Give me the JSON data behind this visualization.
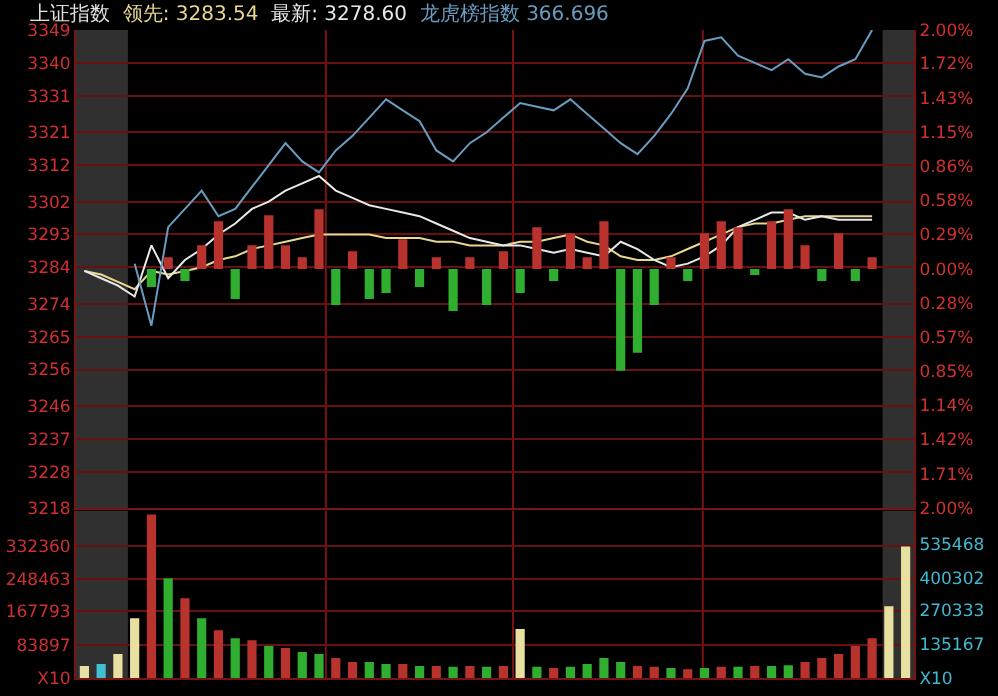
{
  "chart_data": [
    {
      "type": "line",
      "title": "上证指数",
      "categories": [
        null,
        null,
        null,
        null,
        null,
        null,
        null,
        null,
        null,
        null,
        null,
        null,
        null,
        null,
        null,
        null,
        null,
        null,
        null,
        null,
        null,
        null,
        null,
        null,
        null,
        null,
        null,
        null,
        null,
        null,
        null,
        null,
        null,
        null,
        null,
        null,
        null,
        null,
        null,
        null,
        null,
        null,
        null,
        null,
        null,
        null,
        null,
        null,
        null,
        null
      ],
      "series": [
        {
          "name": "领先: 3283.54",
          "color": "#e8d890",
          "values": [
            3283,
            3282,
            3280,
            3278,
            3283,
            3282,
            3283,
            3284,
            3286,
            3287,
            3289,
            3290,
            3291,
            3292,
            3293,
            3293,
            3293,
            3293,
            3292,
            3292,
            3292,
            3291,
            3291,
            3290,
            3290,
            3290,
            3291,
            3291,
            3292,
            3293,
            3291,
            3290,
            3287,
            3286,
            3286,
            3287,
            3289,
            3291,
            3293,
            3295,
            3296,
            3296,
            3297,
            3298,
            3298,
            3298,
            3298,
            3298,
            null,
            null
          ]
        },
        {
          "name": "最新: 3278.60",
          "color": "#e8e8e8",
          "values": [
            3283,
            3281,
            3279,
            3276,
            3290,
            3281,
            3286,
            3289,
            3293,
            3296,
            3300,
            3302,
            3305,
            3307,
            3309,
            3305,
            3303,
            3301,
            3300,
            3299,
            3298,
            3296,
            3294,
            3292,
            3291,
            3290,
            3290,
            3289,
            3288,
            3289,
            3288,
            3287,
            3291,
            3289,
            3286,
            3284,
            3285,
            3287,
            3290,
            3295,
            3297,
            3299,
            3299,
            3297,
            3298,
            3297,
            3297,
            3297,
            null,
            null
          ]
        },
        {
          "name": "龙虎榜指数 366.696",
          "color": "#6a9cc0",
          "values": [
            null,
            null,
            null,
            3285,
            3268,
            3295,
            3300,
            3305,
            3298,
            3300,
            3306,
            3312,
            3318,
            3313,
            3310,
            3316,
            3320,
            3325,
            3330,
            3327,
            3324,
            3316,
            3313,
            3318,
            3321,
            3325,
            3329,
            3328,
            3327,
            3330,
            3326,
            3322,
            3318,
            3315,
            3320,
            3326,
            3333,
            3346,
            3347,
            3342,
            3340,
            3338,
            3341,
            3337,
            3336,
            3339,
            3341,
            3349,
            null,
            null
          ]
        },
        {
          "type": "bar",
          "axis": "y2",
          "values": [
            null,
            null,
            null,
            null,
            -0.15,
            0.1,
            -0.1,
            0.2,
            0.4,
            -0.25,
            0.2,
            0.45,
            0.2,
            0.1,
            0.5,
            -0.3,
            0.15,
            -0.25,
            -0.2,
            0.25,
            -0.15,
            0.1,
            -0.35,
            0.1,
            -0.3,
            0.15,
            -0.2,
            0.35,
            -0.1,
            0.3,
            0.1,
            0.4,
            -0.85,
            -0.7,
            -0.3,
            0.1,
            -0.1,
            0.3,
            0.4,
            0.35,
            -0.05,
            0.4,
            0.5,
            0.2,
            -0.1,
            0.3,
            -0.1,
            0.1,
            null,
            null
          ],
          "colors": [
            "#b8322e",
            "#b8322e",
            "#b8322e",
            "#b8322e",
            "#2fae2f",
            "#b8322e",
            "#2fae2f",
            "#b8322e",
            "#b8322e",
            "#2fae2f",
            "#b8322e",
            "#b8322e",
            "#b8322e",
            "#b8322e",
            "#b8322e",
            "#2fae2f",
            "#b8322e",
            "#2fae2f",
            "#2fae2f",
            "#b8322e",
            "#2fae2f",
            "#b8322e",
            "#2fae2f",
            "#b8322e",
            "#2fae2f",
            "#b8322e",
            "#2fae2f",
            "#b8322e",
            "#2fae2f",
            "#b8322e",
            "#b8322e",
            "#b8322e",
            "#2fae2f",
            "#2fae2f",
            "#2fae2f",
            "#b8322e",
            "#2fae2f",
            "#b8322e",
            "#b8322e",
            "#b8322e",
            "#2fae2f",
            "#b8322e",
            "#b8322e",
            "#b8322e",
            "#2fae2f",
            "#b8322e",
            "#2fae2f",
            "#b8322e",
            "#b8322e",
            "#b8322e"
          ]
        }
      ],
      "ylim": [
        3218,
        3349
      ],
      "yticks": [
        3349,
        3340,
        3331,
        3321,
        3312,
        3302,
        3293,
        3284,
        3274,
        3265,
        3256,
        3246,
        3237,
        3228,
        3218
      ],
      "y2lim": [
        -2,
        2
      ],
      "y2ticks": [
        {
          "value": 2,
          "label": "2.00%"
        },
        {
          "value": 1.72,
          "label": "1.72%"
        },
        {
          "value": 1.43,
          "label": "1.43%"
        },
        {
          "value": 1.15,
          "label": "1.15%"
        },
        {
          "value": 0.86,
          "label": "0.86%"
        },
        {
          "value": 0.58,
          "label": "0.58%"
        },
        {
          "value": 0.29,
          "label": "0.29%"
        },
        {
          "value": 0,
          "label": "0.00%"
        },
        {
          "value": -0.28,
          "label": "0.28%"
        },
        {
          "value": -0.57,
          "label": "0.57%"
        },
        {
          "value": -0.85,
          "label": "0.85%"
        },
        {
          "value": -1.14,
          "label": "1.14%"
        },
        {
          "value": -1.42,
          "label": "1.42%"
        },
        {
          "value": -1.71,
          "label": "1.71%"
        },
        {
          "value": -2,
          "label": "2.00%"
        }
      ],
      "grid": "y",
      "legend": false
    },
    {
      "type": "bar",
      "categories": [
        null,
        null,
        null,
        null,
        null,
        null,
        null,
        null,
        null,
        null,
        null,
        null,
        null,
        null,
        null,
        null,
        null,
        null,
        null,
        null,
        null,
        null,
        null,
        null,
        null,
        null,
        null,
        null,
        null,
        null,
        null,
        null,
        null,
        null,
        null,
        null,
        null,
        null,
        null,
        null,
        null,
        null,
        null,
        null,
        null,
        null,
        null,
        null,
        null,
        null
      ],
      "series": [
        {
          "values": [
            30000,
            35000,
            60000,
            150000,
            410000,
            250000,
            200000,
            150000,
            120000,
            100000,
            95000,
            80000,
            75000,
            65000,
            60000,
            50000,
            40000,
            40000,
            35000,
            35000,
            30000,
            30000,
            28000,
            30000,
            28000,
            30000,
            123000,
            28000,
            25000,
            28000,
            35000,
            50000,
            40000,
            30000,
            28000,
            25000,
            22000,
            25000,
            28000,
            28000,
            30000,
            30000,
            32000,
            40000,
            50000,
            60000,
            80000,
            100000,
            180000,
            330000
          ],
          "colors": [
            "#e8e0a0",
            "#40c0d0",
            "#e8e0a0",
            "#e8e0a0",
            "#b8322e",
            "#2fae2f",
            "#b8322e",
            "#2fae2f",
            "#b8322e",
            "#2fae2f",
            "#b8322e",
            "#2fae2f",
            "#b8322e",
            "#2fae2f",
            "#2fae2f",
            "#b8322e",
            "#b8322e",
            "#2fae2f",
            "#2fae2f",
            "#b8322e",
            "#2fae2f",
            "#b8322e",
            "#2fae2f",
            "#b8322e",
            "#2fae2f",
            "#b8322e",
            "#e8e0a0",
            "#2fae2f",
            "#b8322e",
            "#2fae2f",
            "#2fae2f",
            "#2fae2f",
            "#2fae2f",
            "#b8322e",
            "#b8322e",
            "#2fae2f",
            "#b8322e",
            "#2fae2f",
            "#b8322e",
            "#2fae2f",
            "#b8322e",
            "#2fae2f",
            "#2fae2f",
            "#b8322e",
            "#b8322e",
            "#b8322e",
            "#b8322e",
            "#b8322e",
            "#e8e0a0",
            "#e8e0a0"
          ]
        }
      ],
      "ylim": [
        0,
        419485
      ],
      "yticks": [
        {
          "value": 0,
          "label": "X10"
        },
        83897,
        167793,
        248463,
        332360
      ],
      "y2lim": [
        0,
        669000
      ],
      "y2ticks": [
        {
          "value": 0,
          "label": "X10"
        },
        135167,
        270333,
        400302,
        535468
      ],
      "grid": "y",
      "legend": false
    }
  ]
}
